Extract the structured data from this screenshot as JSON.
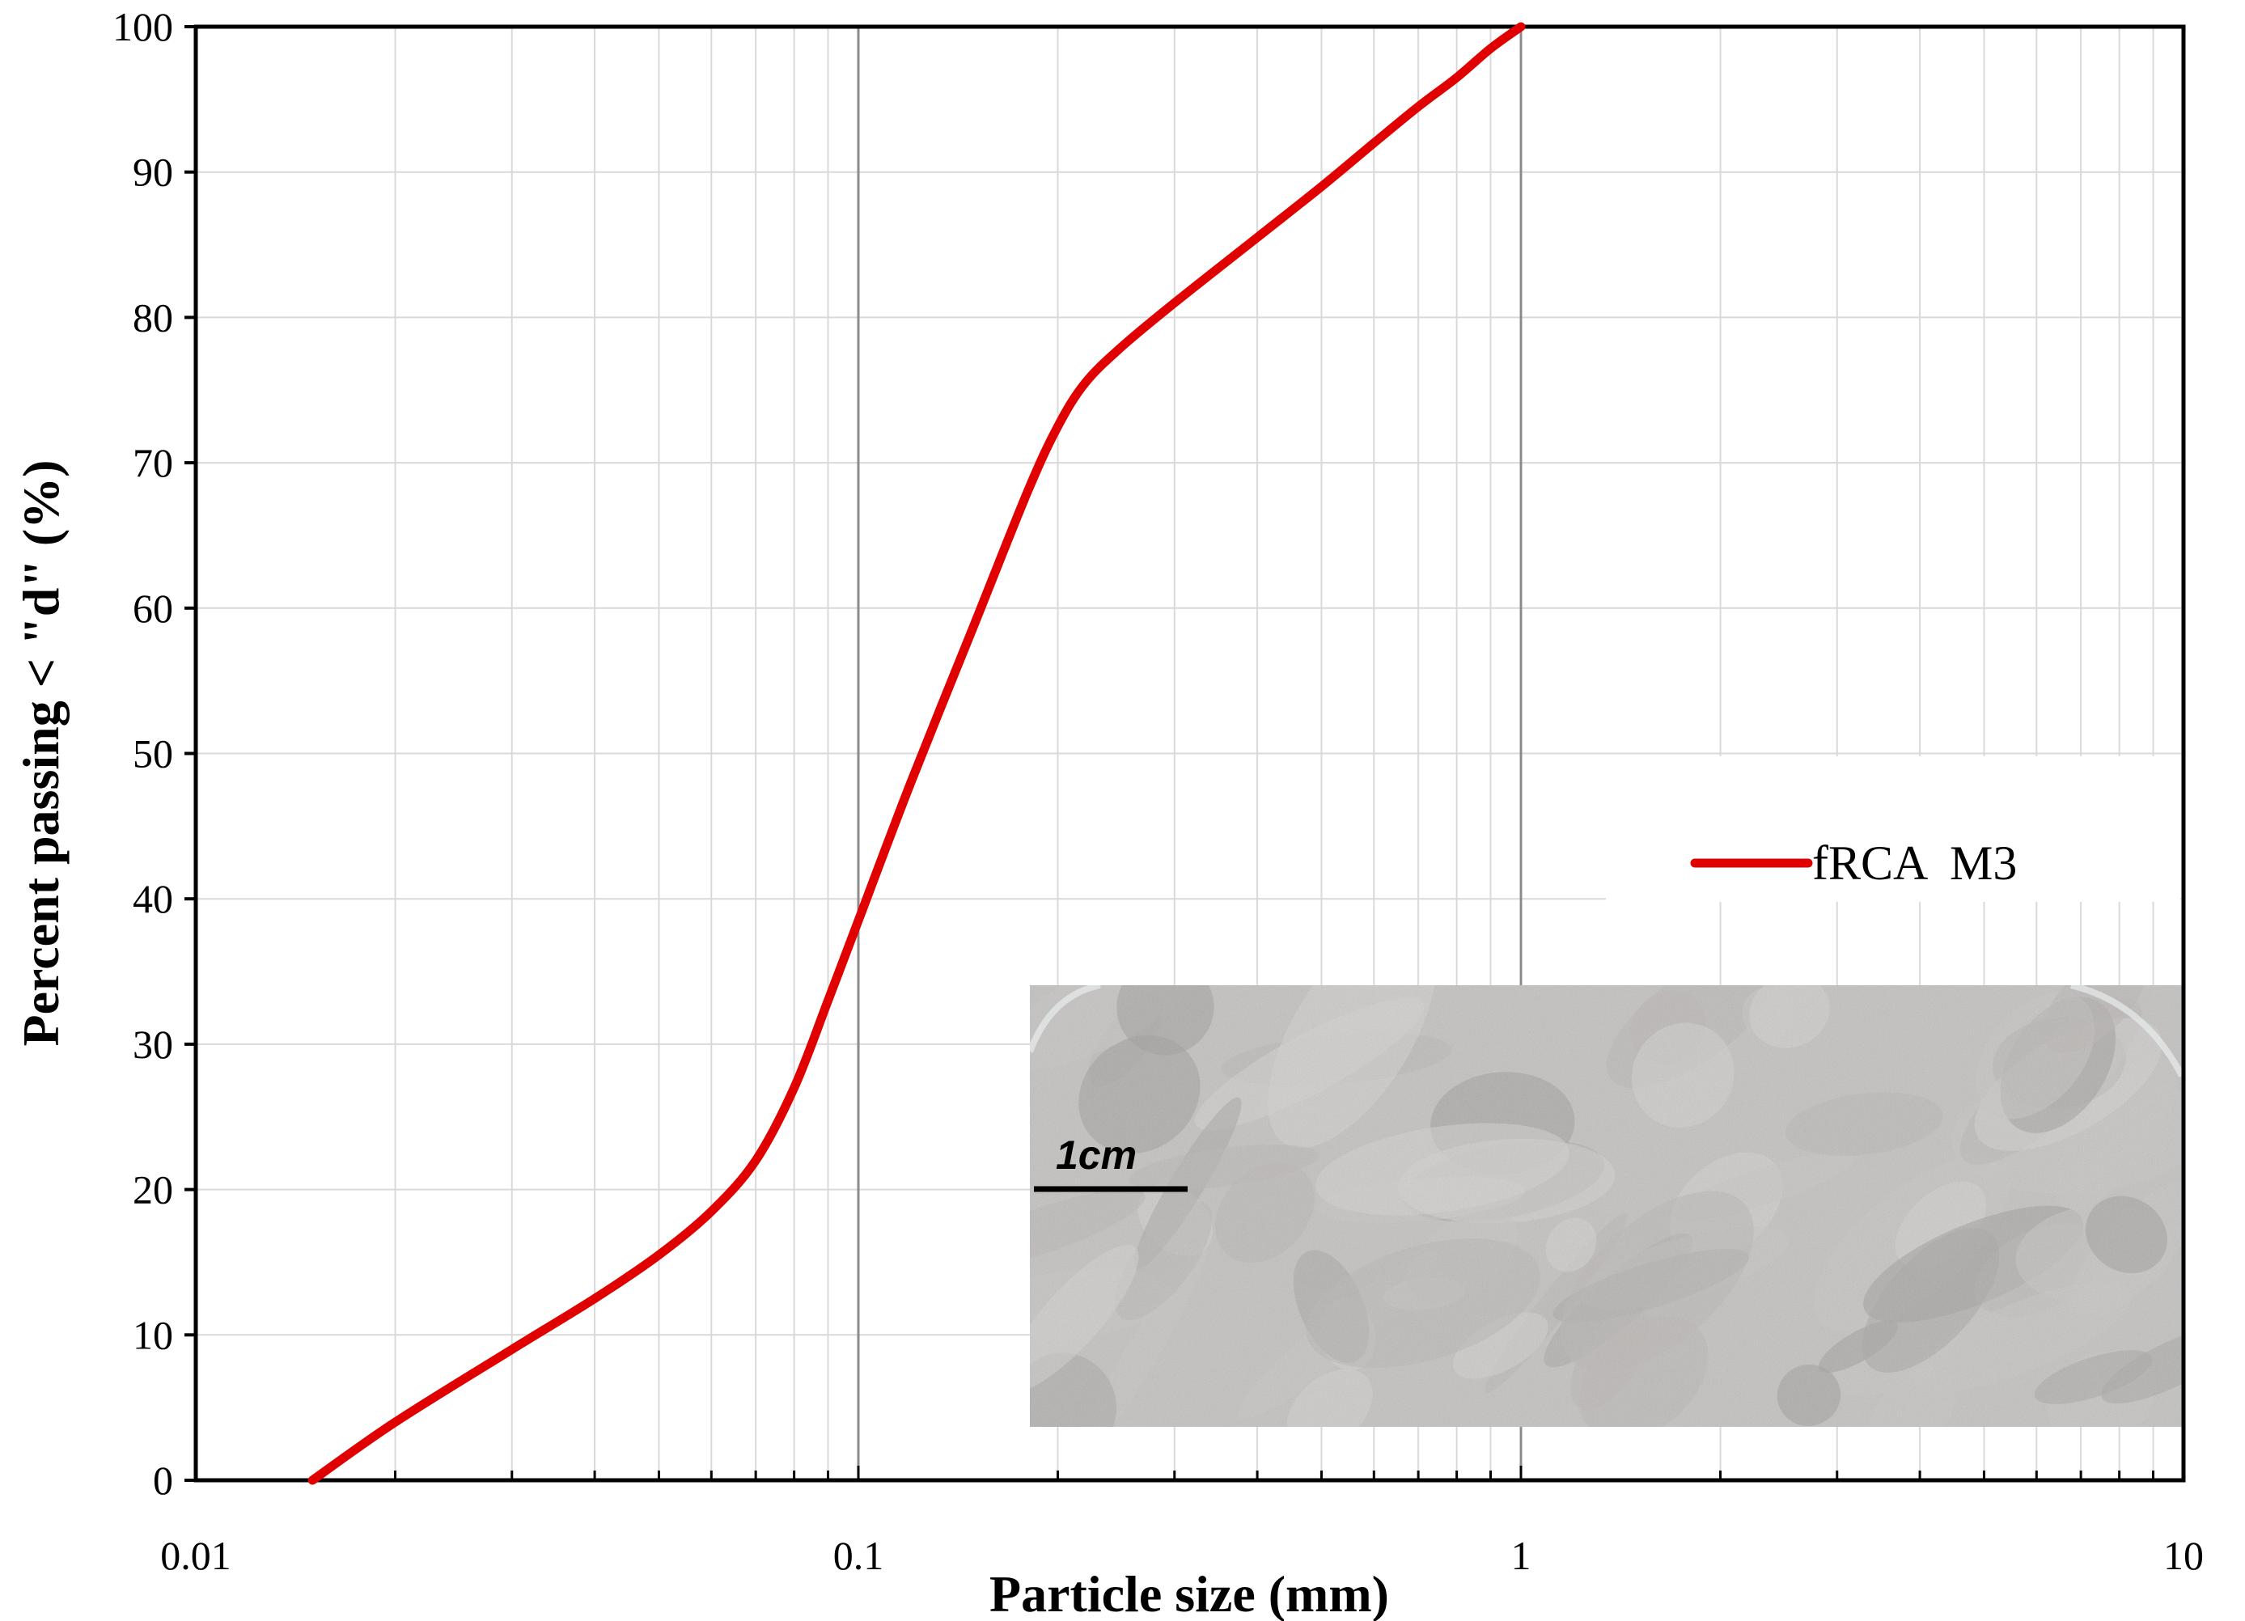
{
  "chart_data": {
    "type": "line",
    "xlabel": "Particle size (mm)",
    "ylabel": "Percent passing < \"d\" (%)",
    "x_scale": "log",
    "xlim": [
      0.01,
      10
    ],
    "ylim": [
      0,
      100
    ],
    "x_ticks": [
      "0.01",
      "0.1",
      "1",
      "10"
    ],
    "y_ticks": [
      "0",
      "10",
      "20",
      "30",
      "40",
      "50",
      "60",
      "70",
      "80",
      "90",
      "100"
    ],
    "grid": true,
    "legend_position": "right",
    "series": [
      {
        "name": "fRCA  M3",
        "color": "#e00000",
        "points": [
          {
            "x": 0.015,
            "y": 0
          },
          {
            "x": 0.02,
            "y": 4
          },
          {
            "x": 0.03,
            "y": 9
          },
          {
            "x": 0.04,
            "y": 12.5
          },
          {
            "x": 0.05,
            "y": 15.5
          },
          {
            "x": 0.06,
            "y": 18.5
          },
          {
            "x": 0.07,
            "y": 22
          },
          {
            "x": 0.08,
            "y": 27
          },
          {
            "x": 0.09,
            "y": 33
          },
          {
            "x": 0.1,
            "y": 38.5
          },
          {
            "x": 0.12,
            "y": 48
          },
          {
            "x": 0.15,
            "y": 59
          },
          {
            "x": 0.18,
            "y": 68
          },
          {
            "x": 0.2,
            "y": 72.5
          },
          {
            "x": 0.22,
            "y": 75.5
          },
          {
            "x": 0.25,
            "y": 78
          },
          {
            "x": 0.3,
            "y": 81
          },
          {
            "x": 0.4,
            "y": 85.5
          },
          {
            "x": 0.5,
            "y": 89
          },
          {
            "x": 0.6,
            "y": 92
          },
          {
            "x": 0.7,
            "y": 94.5
          },
          {
            "x": 0.8,
            "y": 96.5
          },
          {
            "x": 0.9,
            "y": 98.5
          },
          {
            "x": 1.0,
            "y": 100
          }
        ]
      }
    ],
    "inset": {
      "description": "photograph of fine recycled concrete aggregate",
      "scale_bar_label": "1cm",
      "palette": [
        "#c8c6c4",
        "#b9b7b5",
        "#a7a5a3",
        "#d6d4d2",
        "#9e9c9a"
      ]
    }
  }
}
